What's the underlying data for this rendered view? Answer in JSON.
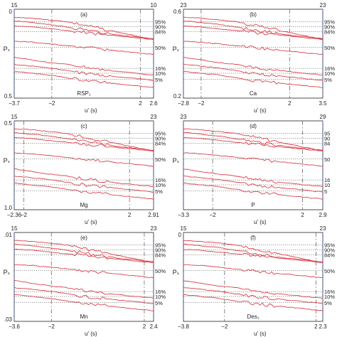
{
  "figure": {
    "panels": [
      {
        "id": "a",
        "label": "(a)",
        "name": "RSP₁",
        "top_ticks": [
          "15",
          "10"
        ],
        "y_tick_top": "0",
        "y_tick_bottom": "0.5",
        "ylabel": "Pₛ",
        "xticks": [
          "−3.7",
          "−2",
          "2",
          "2.6"
        ],
        "xlabel": "u′ (s)",
        "dashed_lines": [
          -3.7,
          -2,
          2,
          2.6
        ],
        "pct_labels": [
          "95%",
          "90%",
          "84%",
          "50%",
          "16%",
          "10%",
          "5%"
        ]
      },
      {
        "id": "b",
        "label": "(b)",
        "name": "Ca",
        "top_ticks": [
          "23",
          "23"
        ],
        "y_tick_top": "0.6",
        "y_tick_bottom": "0.2",
        "ylabel": "Pₛ",
        "xticks": [
          "−2.8",
          "−2",
          "2",
          "3.5"
        ],
        "xlabel": "u′ (s)",
        "dashed_lines": [
          -2.8,
          -2,
          2,
          3.5
        ],
        "pct_labels": [
          "95%",
          "90%",
          "84%",
          "50%",
          "16%",
          "10%",
          "5%"
        ]
      },
      {
        "id": "c",
        "label": "(c)",
        "name": "Mg",
        "top_ticks": [
          "15",
          "23"
        ],
        "y_tick_top": "0.5",
        "y_tick_bottom": "1.0",
        "ylabel": "Pₛ",
        "xticks": [
          "−2.36",
          "−2",
          "2",
          "2.91"
        ],
        "xlabel": "u′ (s)",
        "dashed_lines": [
          -2.36,
          -2,
          2,
          2.91
        ],
        "pct_labels": [
          "95%",
          "90%",
          "84%",
          "50%",
          "16%",
          "10%",
          "5%"
        ]
      },
      {
        "id": "d",
        "label": "(d)",
        "name": "P",
        "top_ticks": [
          "23",
          "29"
        ],
        "y_tick_top": "",
        "y_tick_bottom": "",
        "ylabel": "Pₛ",
        "xticks": [
          "−3.3",
          "−2",
          "2",
          "2.9"
        ],
        "xlabel": "u′ (s)",
        "dashed_lines": [
          -3.3,
          -2,
          2,
          2.9
        ],
        "pct_labels": [
          "95",
          "90",
          "84",
          "50",
          "16",
          "10",
          "5"
        ]
      },
      {
        "id": "e",
        "label": "(e)",
        "name": "Mn",
        "top_ticks": [
          "15",
          "23"
        ],
        "y_tick_top": ".01",
        "y_tick_bottom": ".03",
        "ylabel": "Pₛ",
        "xticks": [
          "−3.6",
          "−2",
          "2",
          "2.4"
        ],
        "xlabel": "u′ (s)",
        "dashed_lines": [
          -3.6,
          -2,
          2,
          2.4
        ],
        "pct_labels": [
          "95%",
          "90%",
          "84%",
          "50%",
          "16%",
          "10%",
          "5%"
        ]
      },
      {
        "id": "f",
        "label": "(f)",
        "name": "Des₁",
        "top_ticks": [
          "15",
          "23"
        ],
        "y_tick_top": "0",
        "y_tick_bottom": "",
        "ylabel": "Pₛ",
        "xticks": [
          "−3.8",
          "−2",
          "2",
          "2.3"
        ],
        "xlabel": "u′ (s)",
        "dashed_lines": [
          -3.8,
          -2,
          2,
          2.3
        ],
        "pct_labels": [
          "95%",
          "90%",
          "84%",
          "50%",
          "16%",
          "10%",
          "5%"
        ]
      }
    ]
  },
  "chart_data": [
    {
      "type": "line",
      "panel": "a",
      "xlim": [
        -3.7,
        2.6
      ],
      "ylim": [
        0,
        0.5
      ]
    },
    {
      "type": "line",
      "panel": "b",
      "xlim": [
        -2.8,
        3.5
      ],
      "ylim": [
        0.6,
        0.2
      ]
    },
    {
      "type": "line",
      "panel": "c",
      "xlim": [
        -2.36,
        2.91
      ],
      "ylim": [
        0.5,
        1.0
      ]
    },
    {
      "type": "line",
      "panel": "d",
      "xlim": [
        -3.3,
        2.9
      ]
    },
    {
      "type": "line",
      "panel": "e",
      "xlim": [
        -3.6,
        2.4
      ],
      "ylim": [
        0.01,
        0.03
      ]
    },
    {
      "type": "line",
      "panel": "f",
      "xlim": [
        -3.8,
        2.3
      ]
    }
  ],
  "colors": {
    "curve": "#d9404a",
    "grid_dotted": "#333333",
    "boundary_dashed": "#3b5fc0",
    "frame": "#222222"
  }
}
